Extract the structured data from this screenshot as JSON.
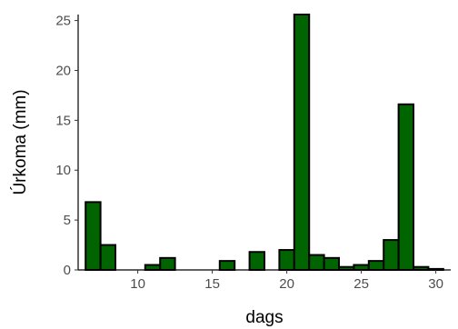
{
  "chart_data": {
    "type": "bar",
    "xlabel": "dags",
    "ylabel": "Úrkoma (mm)",
    "xlim": [
      6,
      31
    ],
    "ylim": [
      0,
      25.6
    ],
    "x_ticks": [
      10,
      15,
      20,
      25,
      30
    ],
    "y_ticks": [
      0,
      5,
      10,
      15,
      20,
      25
    ],
    "grid": false,
    "bar_fill": "#006400",
    "bar_stroke": "#000000",
    "x": [
      7,
      8,
      9,
      10,
      11,
      12,
      13,
      14,
      15,
      16,
      17,
      18,
      19,
      20,
      21,
      22,
      23,
      24,
      25,
      26,
      27,
      28,
      29,
      30
    ],
    "values": [
      6.8,
      2.5,
      0,
      0,
      0.5,
      1.2,
      0,
      0,
      0,
      0.9,
      0,
      1.8,
      0,
      2.0,
      25.6,
      1.5,
      1.2,
      0.3,
      0.5,
      0.9,
      3.0,
      16.6,
      0.3,
      0.1
    ]
  }
}
